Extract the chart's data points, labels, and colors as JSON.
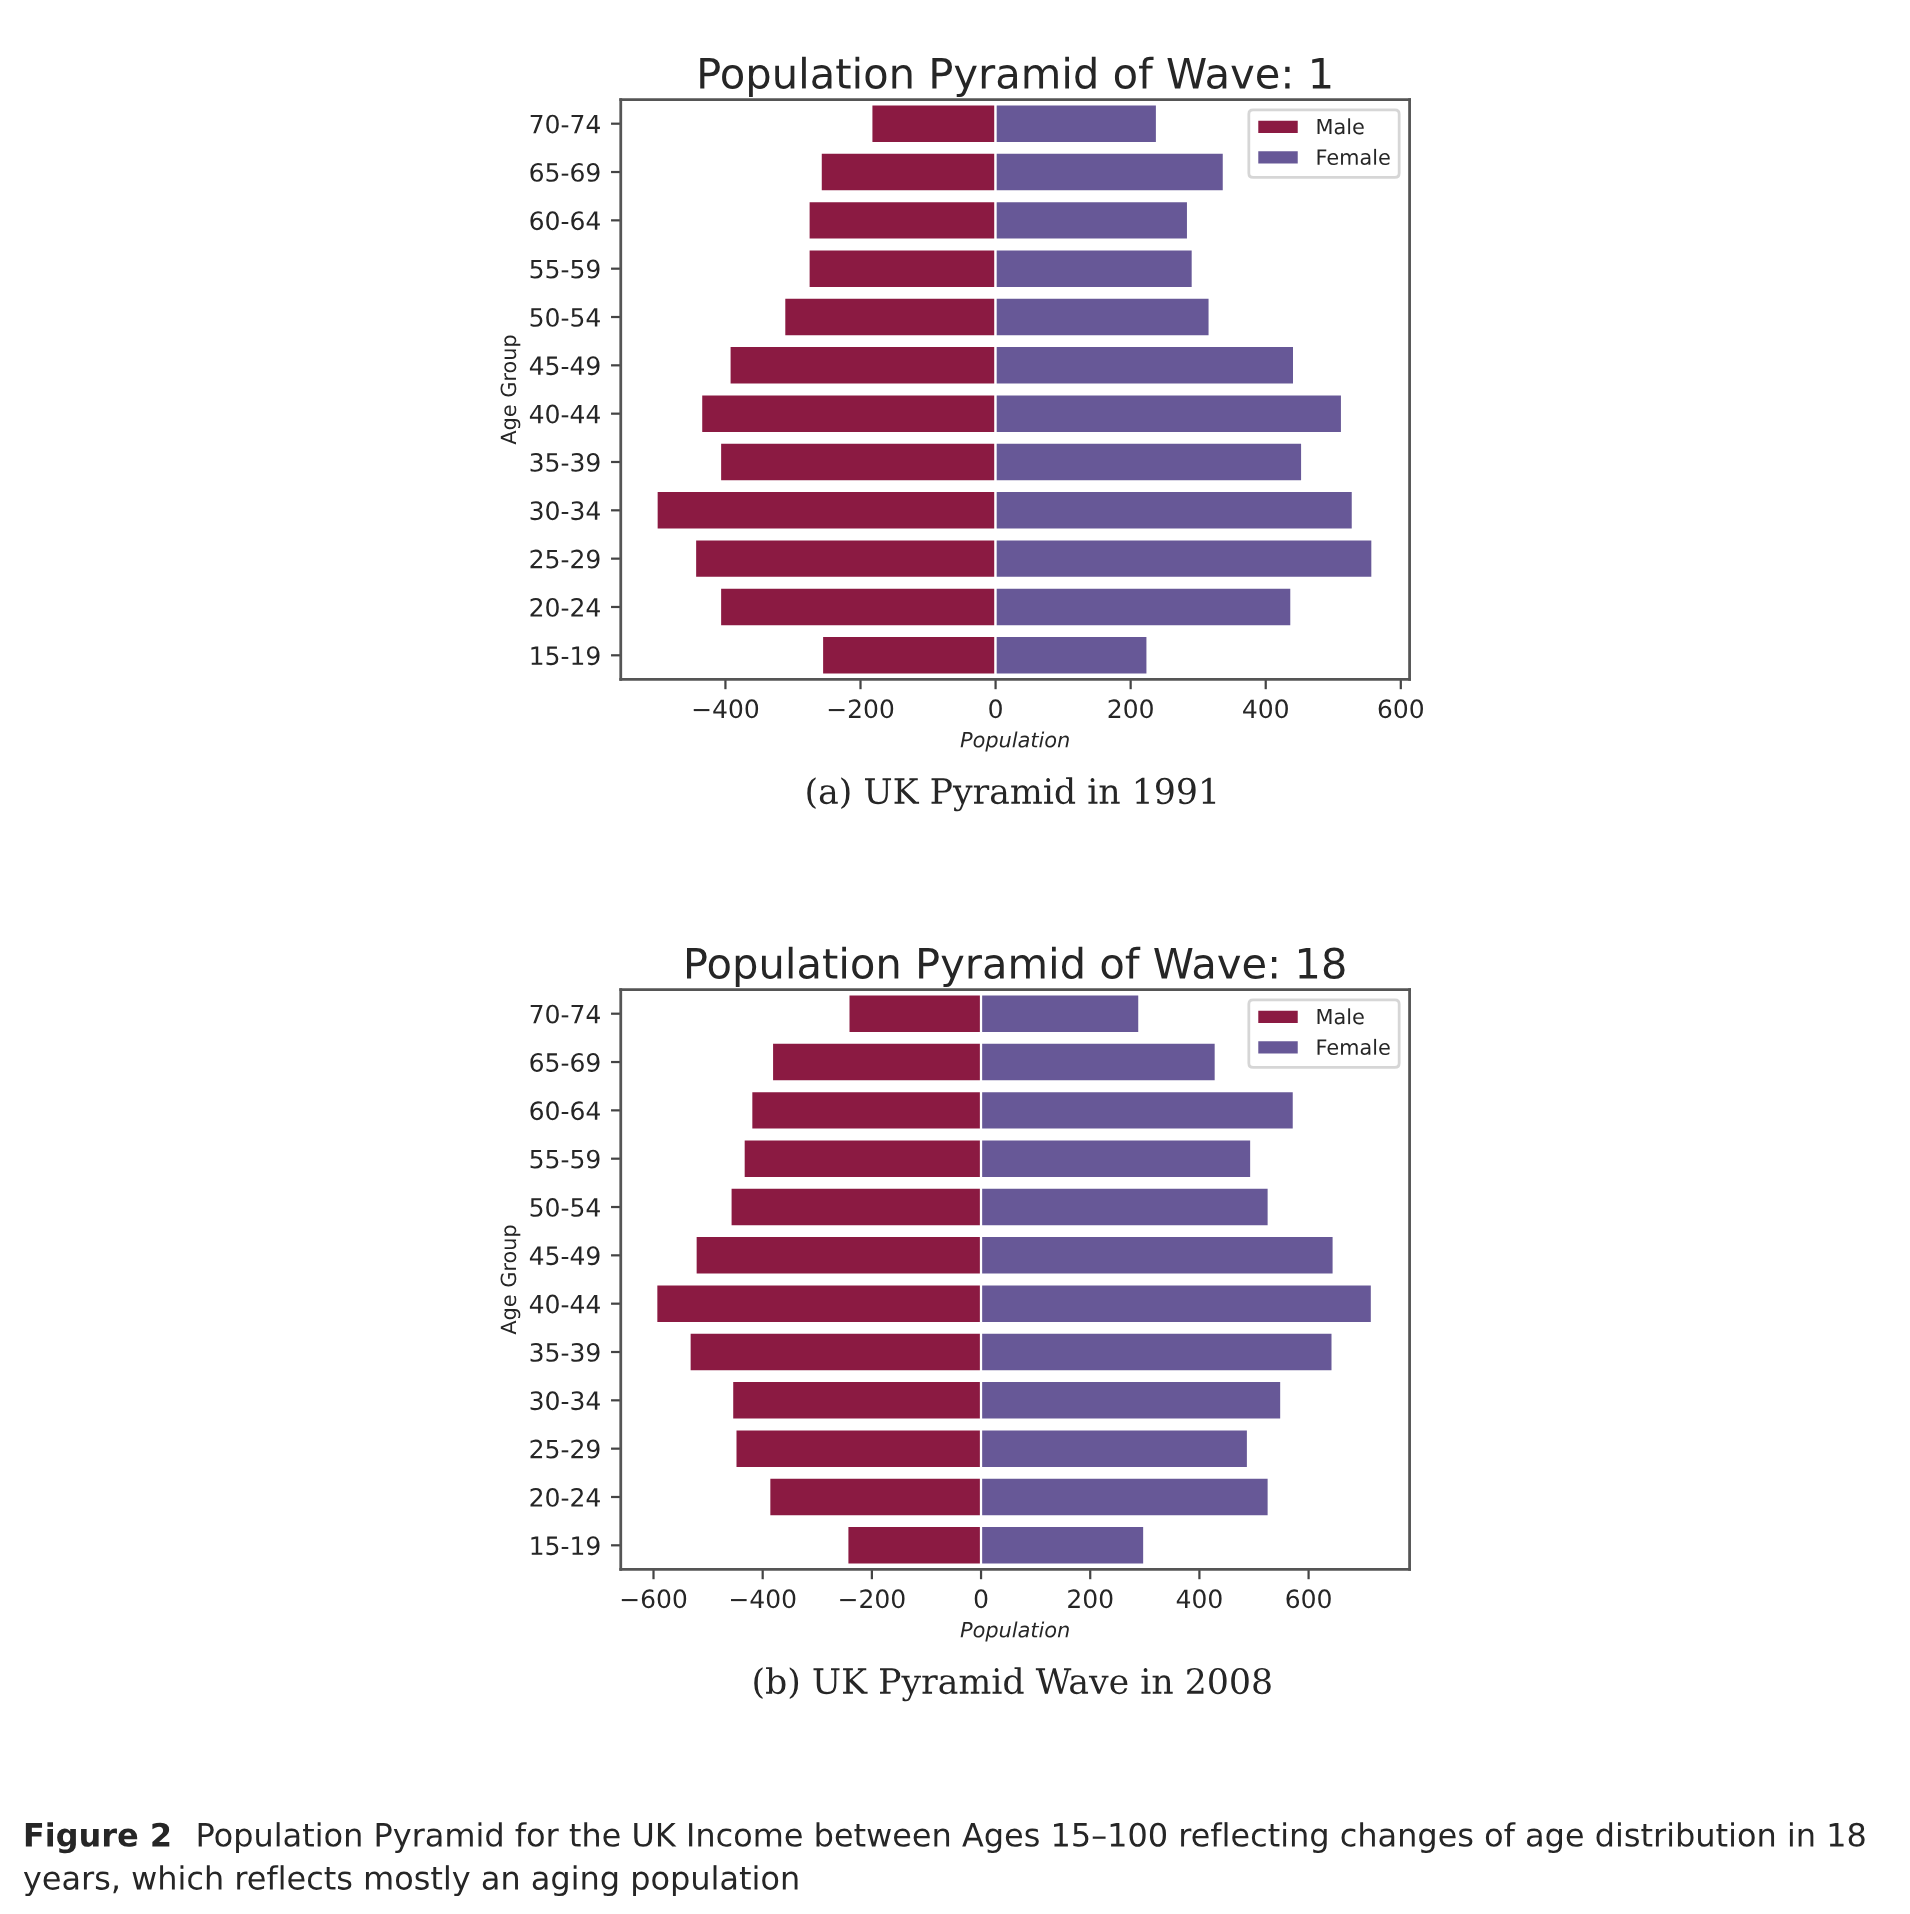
{
  "chart_data": [
    {
      "type": "bar",
      "orientation": "horizontal",
      "title": "Population Pyramid of Wave: 1",
      "stacked": true,
      "xlabel": "Population",
      "ylabel": "Age Group",
      "categories": [
        "70-74",
        "65-69",
        "60-64",
        "55-59",
        "50-54",
        "45-49",
        "40-44",
        "35-39",
        "30-34",
        "25-29",
        "20-24",
        "15-19"
      ],
      "series": [
        {
          "name": "Male",
          "color": "#8b1a42",
          "values": [
            -184,
            -259,
            -277,
            -277,
            -313,
            -394,
            -436,
            -408,
            -502,
            -445,
            -408,
            -257
          ]
        },
        {
          "name": "Female",
          "color": "#675897",
          "values": [
            239,
            338,
            285,
            292,
            317,
            442,
            513,
            454,
            529,
            558,
            438,
            225
          ]
        }
      ],
      "xlim": [
        -555,
        613
      ],
      "xticks": [
        {
          "value": -400,
          "label": "−400"
        },
        {
          "value": -200,
          "label": "−200"
        },
        0,
        200,
        400,
        600
      ],
      "grid": false,
      "legend": "top right",
      "annotations": [
        "(a) UK Pyramid in 1991"
      ]
    },
    {
      "type": "bar",
      "orientation": "horizontal",
      "title": "Population Pyramid of Wave: 18",
      "stacked": true,
      "xlabel": "Population",
      "ylabel": "Age Group",
      "categories": [
        "70-74",
        "65-69",
        "60-64",
        "55-59",
        "50-54",
        "45-49",
        "40-44",
        "35-39",
        "30-34",
        "25-29",
        "20-24",
        "15-19"
      ],
      "series": [
        {
          "name": "Male",
          "color": "#8b1a42",
          "values": [
            -243,
            -383,
            -421,
            -435,
            -459,
            -523,
            -595,
            -534,
            -456,
            -450,
            -388,
            -245
          ]
        },
        {
          "name": "Female",
          "color": "#675897",
          "values": [
            290,
            430,
            573,
            495,
            527,
            646,
            716,
            644,
            550,
            489,
            527,
            299
          ]
        }
      ],
      "xlim": [
        -660,
        785
      ],
      "xticks": [
        {
          "value": -600,
          "label": "−600"
        },
        {
          "value": -400,
          "label": "−400"
        },
        {
          "value": -200,
          "label": "−200"
        },
        0,
        200,
        400,
        600
      ],
      "grid": false,
      "legend": "top right",
      "annotations": [
        "(b) UK Pyramid Wave in 2008",
        "Figure 2",
        "Population Pyramid for the UK Income between Ages 15–100 reflecting changes of age distribution in 18 years, which reflects mostly an aging population"
      ]
    }
  ]
}
